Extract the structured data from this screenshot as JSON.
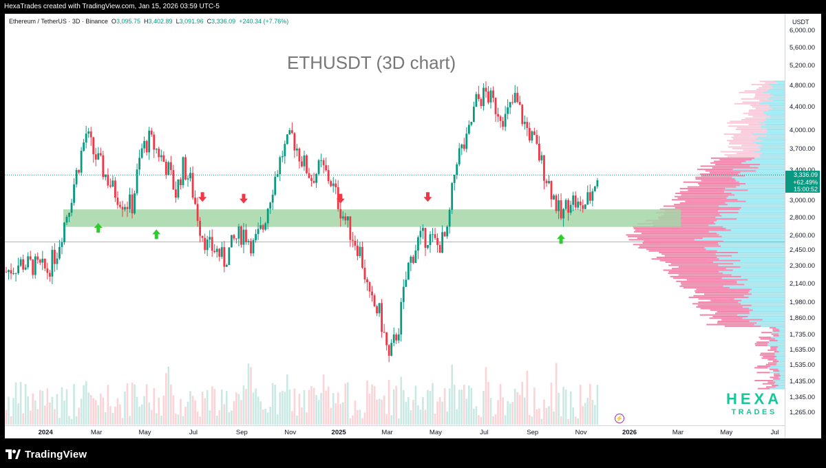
{
  "header": {
    "created_text": "HexaTrades created with TradingView.com, Jan 15, 2026 03:59 UTC-5"
  },
  "legend": {
    "symbol": "Ethereum / TetherUS · 3D · Binance",
    "open_label": "O",
    "open": "3,095.75",
    "high_label": "H",
    "high": "3,402.89",
    "low_label": "L",
    "low": "3,091.96",
    "close_label": "C",
    "close": "3,336.09",
    "change": "+240.34 (+7.76%)"
  },
  "chart": {
    "title": "ETHUSDT (3D chart)",
    "currency": "USDT",
    "y_axis_labels": [
      "6,000.00",
      "5,600.00",
      "5,200.00",
      "4,800.00",
      "4,400.00",
      "4,000.00",
      "3,700.00",
      "3,400.00",
      "3,000.00",
      "2,800.00",
      "2,600.00",
      "2,450.00",
      "2,300.00",
      "2,140.00",
      "1,980.00",
      "1,860.00",
      "1,735.00",
      "1,635.00",
      "1,535.00",
      "1,435.00",
      "1,345.00",
      "1,265.00"
    ],
    "x_axis_labels": [
      {
        "label": "2024",
        "bold": true
      },
      {
        "label": "Mar",
        "bold": false
      },
      {
        "label": "May",
        "bold": false
      },
      {
        "label": "Jul",
        "bold": false
      },
      {
        "label": "Sep",
        "bold": false
      },
      {
        "label": "Nov",
        "bold": false
      },
      {
        "label": "2025",
        "bold": true
      },
      {
        "label": "Mar",
        "bold": false
      },
      {
        "label": "May",
        "bold": false
      },
      {
        "label": "Jul",
        "bold": false
      },
      {
        "label": "Sep",
        "bold": false
      },
      {
        "label": "Nov",
        "bold": false
      },
      {
        "label": "2026",
        "bold": true
      },
      {
        "label": "Mar",
        "bold": false
      },
      {
        "label": "May",
        "bold": false
      },
      {
        "label": "Jul",
        "bold": false
      }
    ],
    "current_price": {
      "price": "3,336.09",
      "change_pct": "+62.49%",
      "countdown": "15:00:52"
    },
    "support_zone": {
      "low": 2700,
      "high": 2900
    },
    "current_line_price": 3336.09,
    "low_line_price": 2540,
    "colors": {
      "up": "#089981",
      "down": "#f23645",
      "zone": "#a5d6a7",
      "profile_up": "#4dd0e1",
      "profile_down": "#f06292"
    },
    "arrows": [
      {
        "type": "up",
        "month": 3.8,
        "price": 2690
      },
      {
        "type": "up",
        "month": 6.2,
        "price": 2620
      },
      {
        "type": "down",
        "month": 8.1,
        "price": 3050
      },
      {
        "type": "down",
        "month": 9.8,
        "price": 3030
      },
      {
        "type": "down",
        "month": 13.8,
        "price": 3030
      },
      {
        "type": "down",
        "month": 17.4,
        "price": 3050
      },
      {
        "type": "up",
        "month": 22.9,
        "price": 2570
      }
    ]
  },
  "watermark": {
    "line1": "HEXA",
    "line2": "TRADES"
  },
  "footer": {
    "brand": "TradingView"
  },
  "chart_data": {
    "type": "candlestick",
    "title": "ETHUSDT (3D chart)",
    "ylabel": "USDT",
    "ylim": [
      1265,
      6000
    ],
    "x_start": "2023-12",
    "x_end": "2026-08",
    "series": [
      {
        "name": "ETH/USDT",
        "close_path": [
          {
            "month": 0.0,
            "price": 2250
          },
          {
            "month": 0.6,
            "price": 2330
          },
          {
            "month": 1.2,
            "price": 2300
          },
          {
            "month": 1.7,
            "price": 2260
          },
          {
            "month": 2.1,
            "price": 2450
          },
          {
            "month": 2.6,
            "price": 2950
          },
          {
            "month": 3.0,
            "price": 3500
          },
          {
            "month": 3.3,
            "price": 3950
          },
          {
            "month": 3.6,
            "price": 3650
          },
          {
            "month": 4.0,
            "price": 3400
          },
          {
            "month": 4.4,
            "price": 3150
          },
          {
            "month": 4.8,
            "price": 3000
          },
          {
            "month": 5.2,
            "price": 2950
          },
          {
            "month": 5.6,
            "price": 3700
          },
          {
            "month": 5.9,
            "price": 3850
          },
          {
            "month": 6.3,
            "price": 3650
          },
          {
            "month": 6.7,
            "price": 3400
          },
          {
            "month": 7.0,
            "price": 3100
          },
          {
            "month": 7.3,
            "price": 3450
          },
          {
            "month": 7.6,
            "price": 3250
          },
          {
            "month": 8.0,
            "price": 2700
          },
          {
            "month": 8.3,
            "price": 2500
          },
          {
            "month": 8.7,
            "price": 2450
          },
          {
            "month": 9.0,
            "price": 2350
          },
          {
            "month": 9.4,
            "price": 2550
          },
          {
            "month": 9.8,
            "price": 2650
          },
          {
            "month": 10.2,
            "price": 2500
          },
          {
            "month": 10.6,
            "price": 2700
          },
          {
            "month": 11.0,
            "price": 3200
          },
          {
            "month": 11.4,
            "price": 3650
          },
          {
            "month": 11.8,
            "price": 3900
          },
          {
            "month": 12.2,
            "price": 3550
          },
          {
            "month": 12.6,
            "price": 3300
          },
          {
            "month": 13.0,
            "price": 3450
          },
          {
            "month": 13.4,
            "price": 3250
          },
          {
            "month": 13.8,
            "price": 2900
          },
          {
            "month": 14.2,
            "price": 2650
          },
          {
            "month": 14.6,
            "price": 2450
          },
          {
            "month": 15.0,
            "price": 2000
          },
          {
            "month": 15.4,
            "price": 1900
          },
          {
            "month": 15.8,
            "price": 1570
          },
          {
            "month": 16.2,
            "price": 1800
          },
          {
            "month": 16.6,
            "price": 2300
          },
          {
            "month": 17.0,
            "price": 2550
          },
          {
            "month": 17.4,
            "price": 2600
          },
          {
            "month": 17.8,
            "price": 2500
          },
          {
            "month": 18.2,
            "price": 2600
          },
          {
            "month": 18.6,
            "price": 3600
          },
          {
            "month": 19.0,
            "price": 3800
          },
          {
            "month": 19.4,
            "price": 4500
          },
          {
            "month": 19.8,
            "price": 4650
          },
          {
            "month": 20.2,
            "price": 4400
          },
          {
            "month": 20.6,
            "price": 4200
          },
          {
            "month": 21.0,
            "price": 4550
          },
          {
            "month": 21.4,
            "price": 4100
          },
          {
            "month": 21.8,
            "price": 3800
          },
          {
            "month": 22.2,
            "price": 3400
          },
          {
            "month": 22.6,
            "price": 3050
          },
          {
            "month": 22.9,
            "price": 2800
          },
          {
            "month": 23.3,
            "price": 3050
          },
          {
            "month": 23.7,
            "price": 2900
          },
          {
            "month": 24.1,
            "price": 3050
          },
          {
            "month": 24.4,
            "price": 3336
          }
        ]
      }
    ]
  }
}
